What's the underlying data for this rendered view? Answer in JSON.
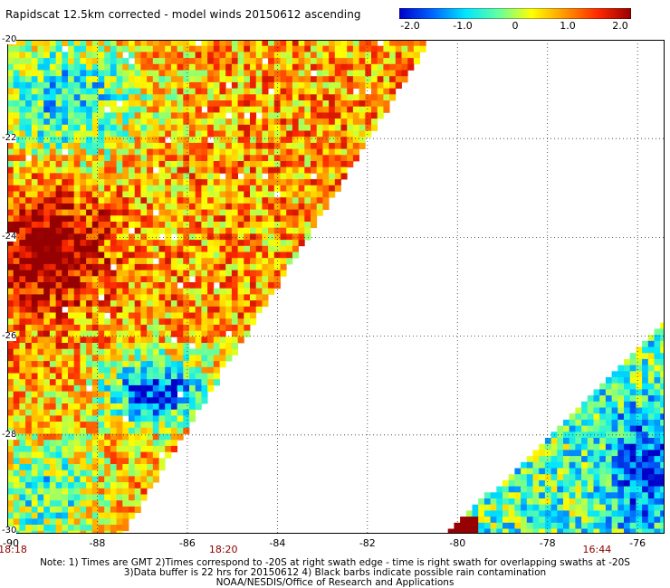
{
  "title": "Rapidscat 12.5km corrected - model winds 20150612 ascending",
  "colorbar": {
    "stops": [
      "#0000c8",
      "#0064ff",
      "#00e6ff",
      "#64ffa0",
      "#ffff00",
      "#ff9600",
      "#ff2800",
      "#960000"
    ],
    "ticks": [
      {
        "label": "-2.0",
        "value": -2.0
      },
      {
        "label": "-1.0",
        "value": -1.0
      },
      {
        "label": "0",
        "value": 0
      },
      {
        "label": "1.0",
        "value": 1.0
      },
      {
        "label": "2.0",
        "value": 2.0
      }
    ]
  },
  "axes": {
    "lon_ticks": [
      "-90",
      "-88",
      "-86",
      "-84",
      "-82",
      "-80",
      "-78",
      "-76"
    ],
    "lat_ticks": [
      "-20",
      "-22",
      "-24",
      "-26",
      "-28",
      "-30"
    ],
    "lon_range": [
      -90,
      -75.4
    ],
    "lat_range": [
      -30,
      -20
    ]
  },
  "times": [
    {
      "label": "18:18",
      "lon": -90
    },
    {
      "label": "18:20",
      "lon": -85.2
    },
    {
      "label": "16:44",
      "lon": -76.9
    }
  ],
  "notes": [
    "Note: 1) Times are GMT 2)Times correspond to -20S at right swath edge - time is right swath for overlapping swaths at -20S",
    "3)Data buffer is 22 hrs for 20150612 4) Black barbs indicate possible rain contamination",
    "NOAA/NESDIS/Office of Research and Applications"
  ]
}
